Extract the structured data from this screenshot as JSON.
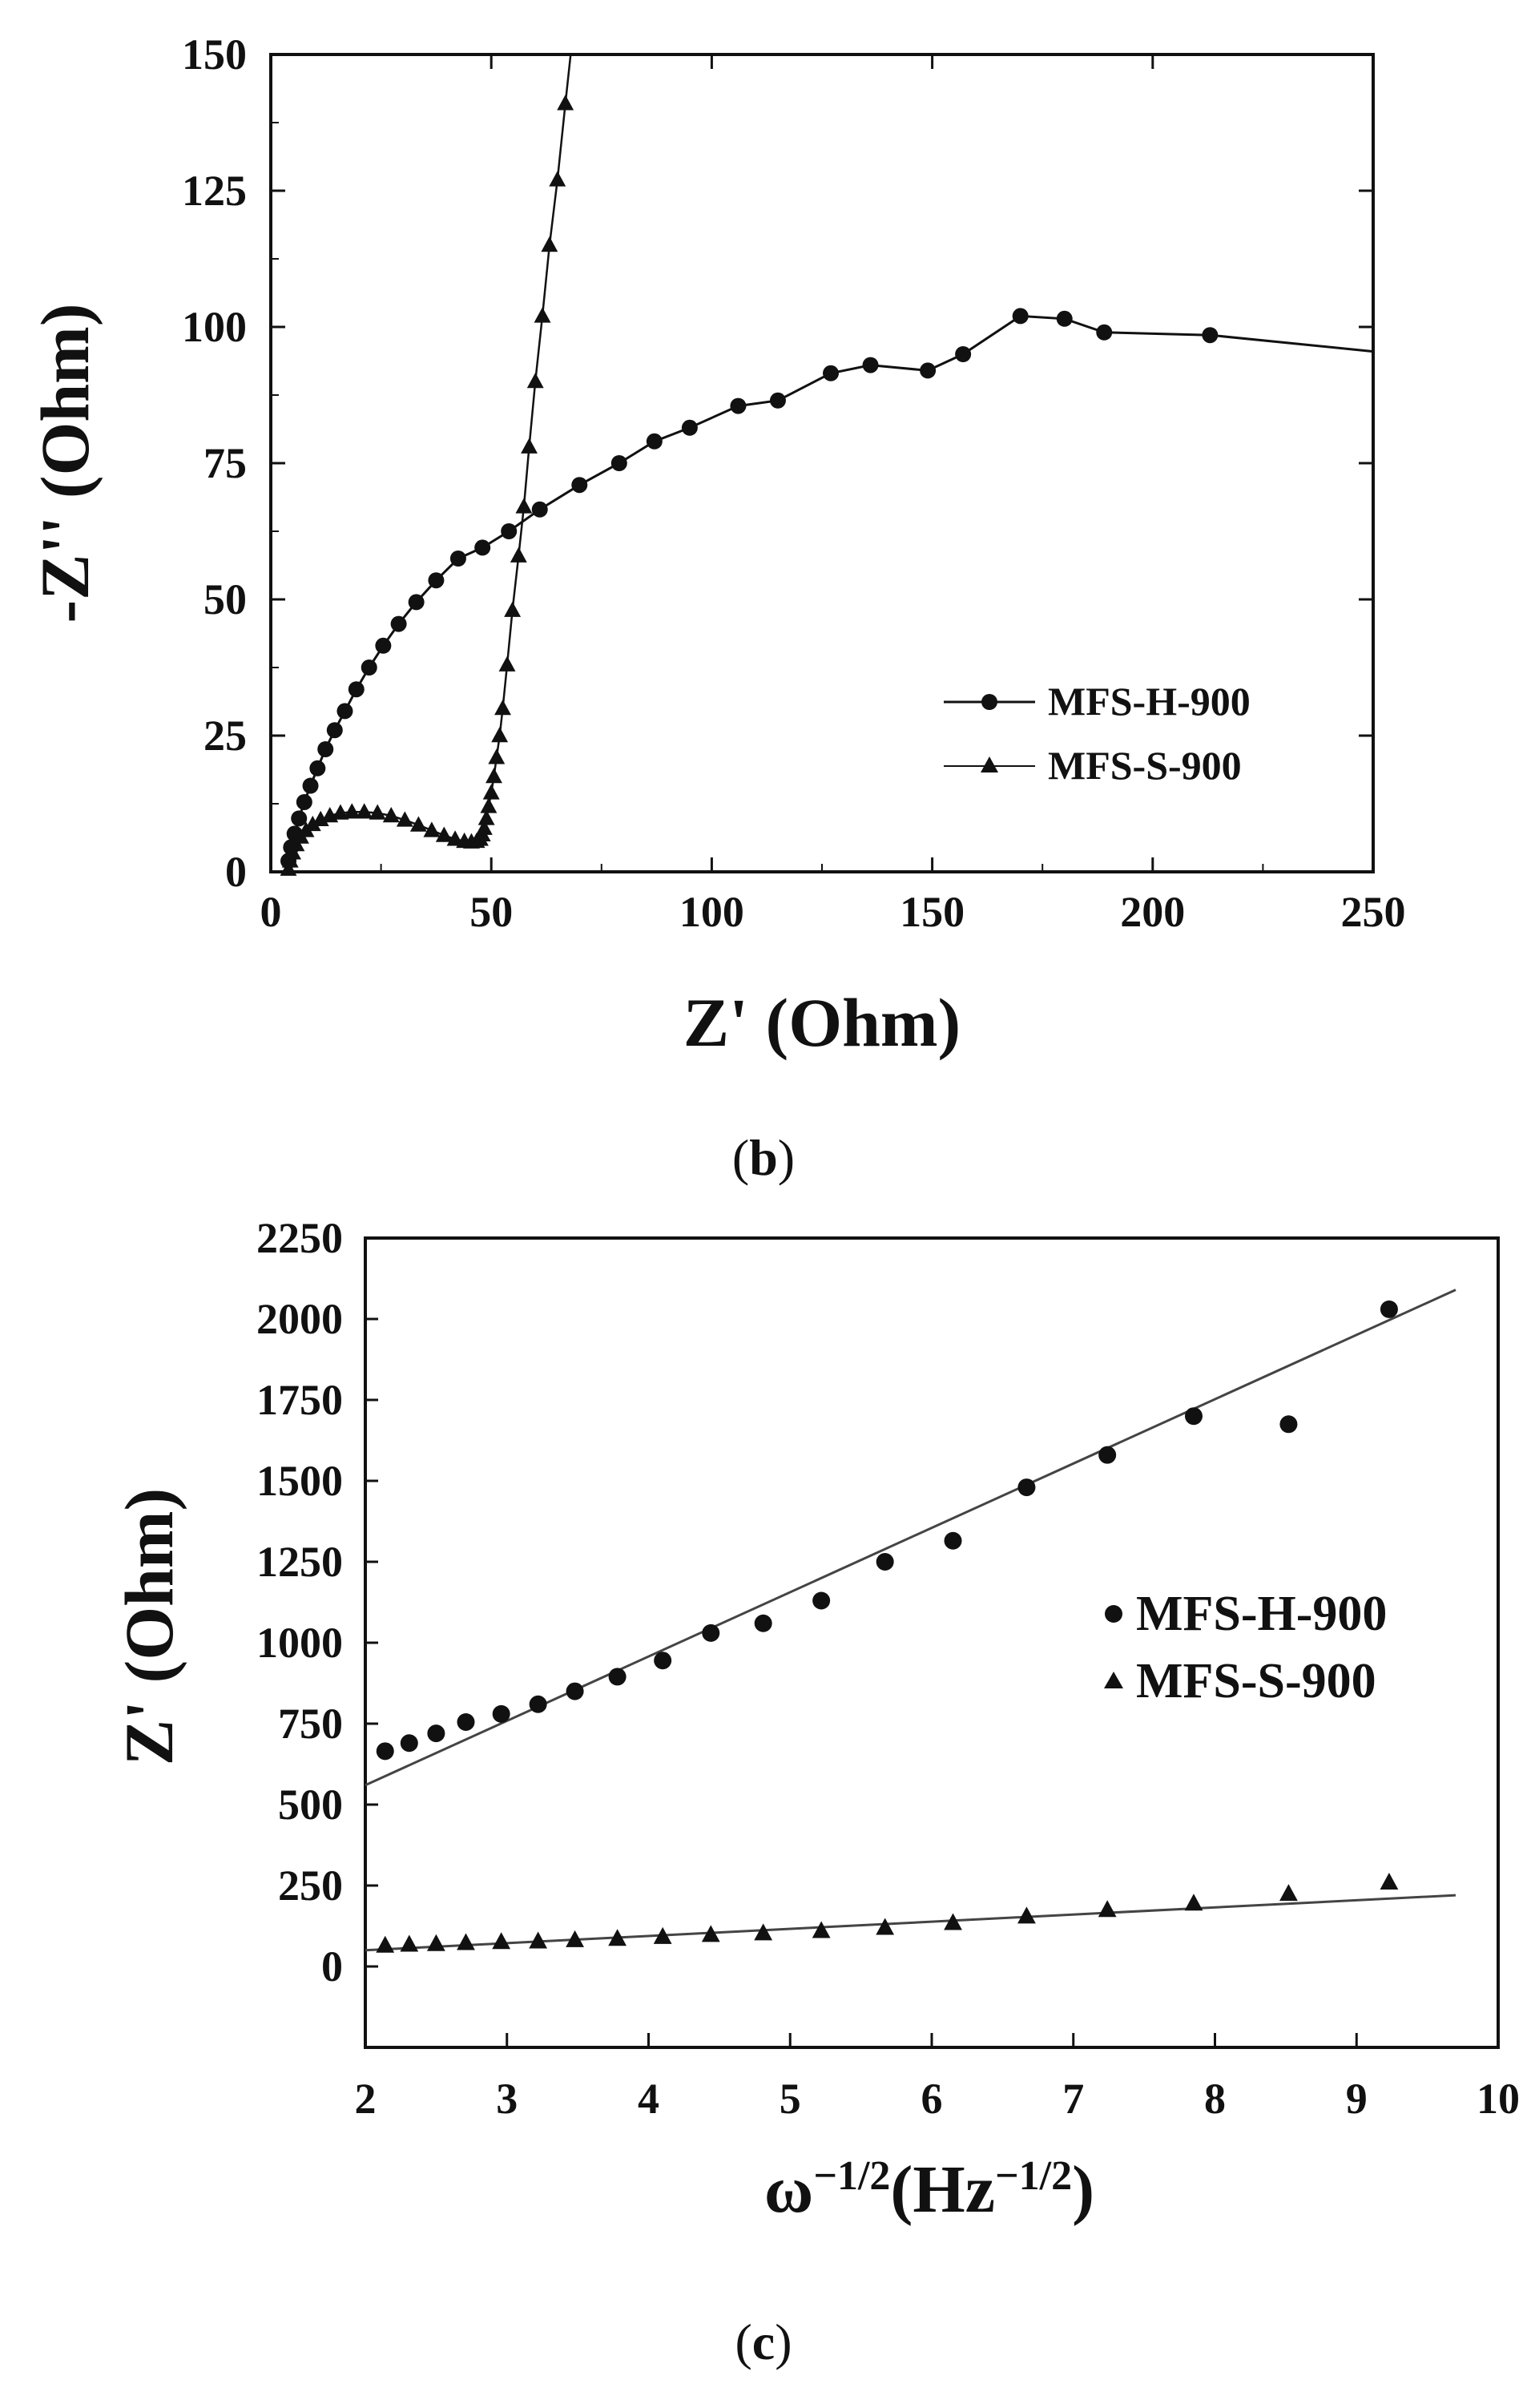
{
  "chart_data": [
    {
      "id": "b",
      "type": "scatter",
      "caption_letter": "b",
      "xlabel": "Z' (Ohm)",
      "ylabel": "-Z'' (Ohm)",
      "xlim": [
        0,
        250
      ],
      "ylim": [
        0,
        150
      ],
      "xticks": [
        0,
        50,
        100,
        150,
        200,
        250
      ],
      "yticks": [
        0,
        25,
        50,
        75,
        100,
        125,
        150
      ],
      "legend_position": "lower-right",
      "series": [
        {
          "name": "MFS-H-900",
          "marker": "circle",
          "connected": true,
          "x": [
            4,
            4.6,
            5.4,
            6.4,
            7.6,
            9,
            10.6,
            12.4,
            14.5,
            16.8,
            19.4,
            22.3,
            25.5,
            29,
            33,
            37.5,
            42.5,
            48,
            54,
            61,
            70,
            79,
            87,
            95,
            106,
            115,
            127,
            136,
            149,
            157,
            170,
            180,
            189,
            213,
            250
          ],
          "y": [
            2,
            4.5,
            7,
            9.8,
            12.8,
            15.8,
            19,
            22.5,
            26,
            29.5,
            33.5,
            37.5,
            41.5,
            45.5,
            49.5,
            53.5,
            57.5,
            59.5,
            62.5,
            66.5,
            71,
            75,
            79,
            81.5,
            85.5,
            86.5,
            91.5,
            93,
            92,
            95,
            102,
            101.5,
            99,
            98.5,
            95.5
          ]
        },
        {
          "name": "MFS-S-900",
          "marker": "triangle",
          "connected": true,
          "x": [
            4,
            4.4,
            5,
            5.8,
            6.8,
            8,
            9.5,
            11.3,
            13.4,
            15.8,
            18.4,
            21.2,
            24.2,
            27.3,
            30.4,
            33.5,
            36.5,
            39.3,
            41.8,
            43.9,
            45.5,
            46.7,
            47.5,
            48,
            48.4,
            48.9,
            49.4,
            50,
            50.6,
            51.2,
            51.9,
            52.6,
            53.6,
            54.8,
            56.2,
            57.4,
            58.6,
            60,
            61.6,
            63.2,
            65,
            66.8,
            68
          ],
          "y": [
            0.5,
            2,
            3.5,
            5,
            6.4,
            7.6,
            8.7,
            9.6,
            10.3,
            10.8,
            11,
            11,
            10.8,
            10.3,
            9.5,
            8.6,
            7.6,
            6.7,
            6,
            5.6,
            5.5,
            5.6,
            6,
            6.8,
            8,
            9.8,
            12,
            14.5,
            17.5,
            21,
            25,
            30,
            38,
            48,
            58,
            67,
            78,
            90,
            102,
            115,
            127,
            141,
            150
          ]
        }
      ]
    },
    {
      "id": "c",
      "type": "scatter",
      "caption_letter": "c",
      "xlabel_base": "ω",
      "xlabel_base_exp": "−1/2",
      "xlabel_unit_open": "(Hz",
      "xlabel_unit_exp": "−1/2",
      "xlabel_unit_close": ")",
      "ylabel": "Z' (Ohm)",
      "xlim": [
        2,
        10
      ],
      "ylim": [
        -250,
        2250
      ],
      "xticks": [
        2,
        3,
        4,
        5,
        6,
        7,
        8,
        9,
        10
      ],
      "yticks": [
        0,
        250,
        500,
        750,
        1000,
        1250,
        1500,
        1750,
        2000,
        2250
      ],
      "legend_position": "right",
      "series": [
        {
          "name": "MFS-H-900",
          "marker": "circle",
          "x": [
            2.14,
            2.31,
            2.5,
            2.71,
            2.96,
            3.22,
            3.48,
            3.78,
            4.1,
            4.44,
            4.81,
            5.22,
            5.67,
            6.15,
            6.67,
            7.24,
            7.85,
            8.52,
            9.23
          ],
          "y": [
            665,
            690,
            720,
            755,
            780,
            810,
            850,
            895,
            945,
            1030,
            1060,
            1130,
            1250,
            1315,
            1480,
            1580,
            1700,
            1675,
            2030
          ],
          "fit": {
            "x": [
              2,
              9.7
            ],
            "y": [
              560,
              2090
            ]
          }
        },
        {
          "name": "MFS-S-900",
          "marker": "triangle",
          "x": [
            2.14,
            2.31,
            2.5,
            2.71,
            2.96,
            3.22,
            3.48,
            3.78,
            4.1,
            4.44,
            4.81,
            5.22,
            5.67,
            6.15,
            6.67,
            7.24,
            7.85,
            8.52,
            9.23
          ],
          "y": [
            65,
            68,
            70,
            73,
            76,
            78,
            82,
            86,
            92,
            98,
            103,
            110,
            120,
            135,
            155,
            175,
            195,
            225,
            260
          ],
          "fit": {
            "x": [
              2,
              9.7
            ],
            "y": [
              50,
              220
            ]
          }
        }
      ]
    }
  ]
}
